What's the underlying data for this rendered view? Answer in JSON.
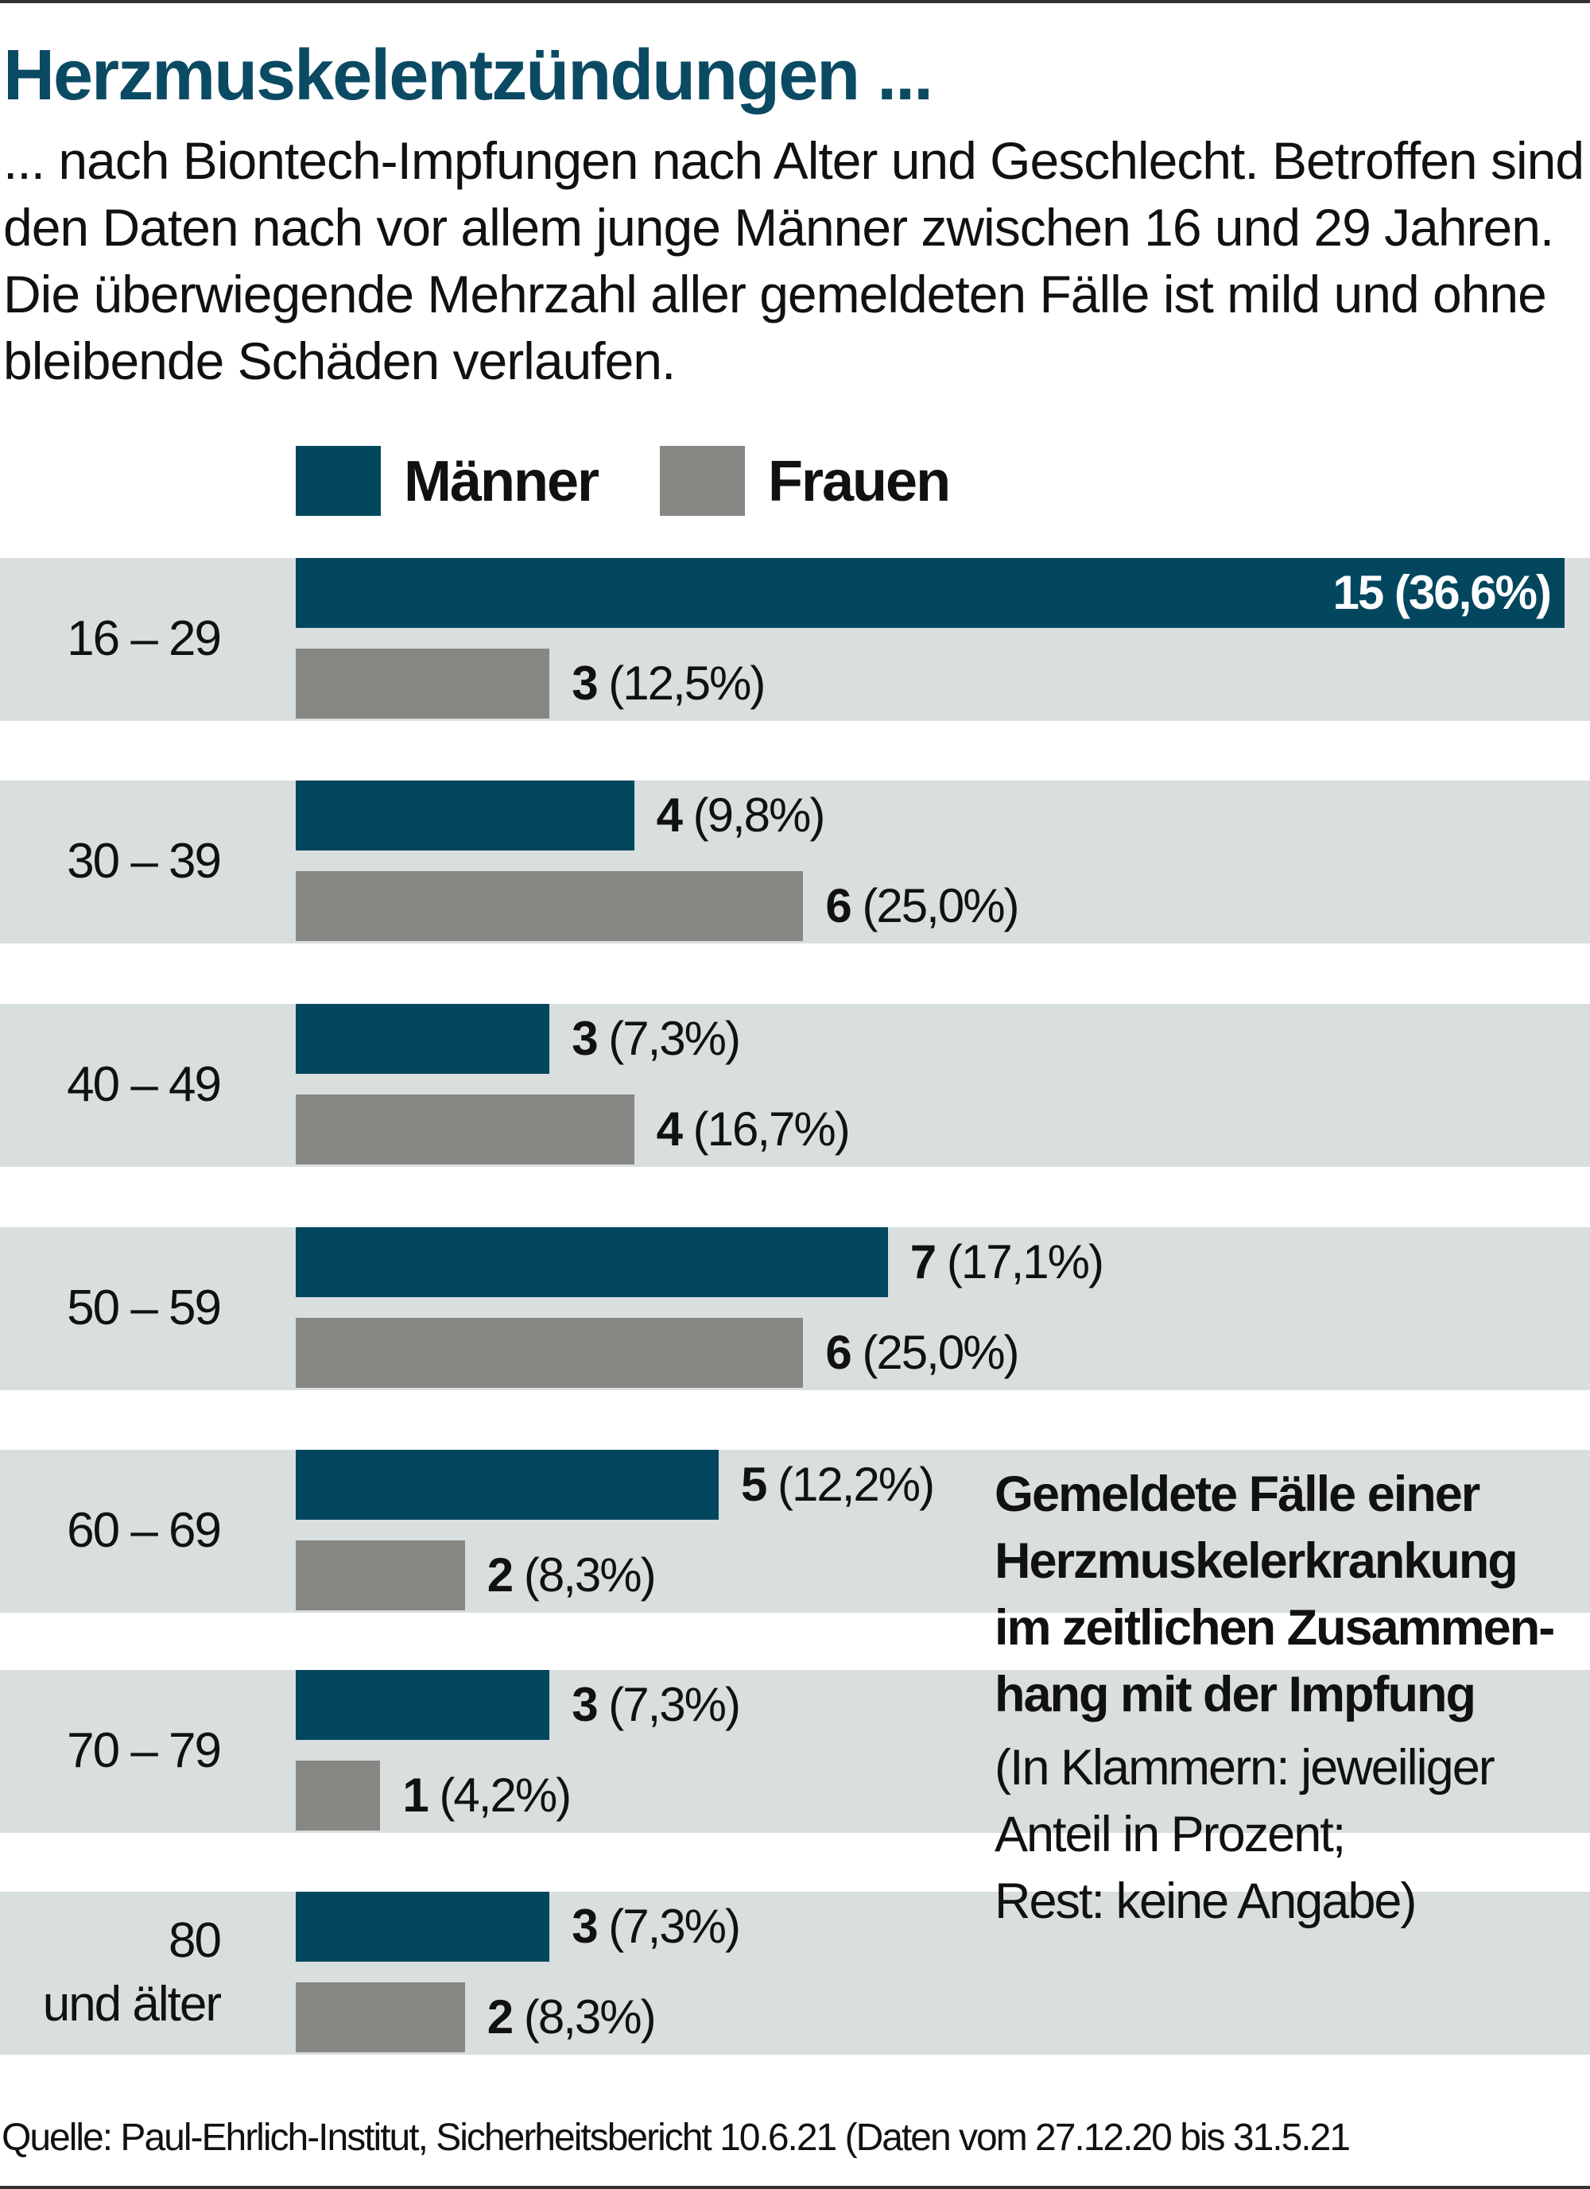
{
  "title": "Herzmuskelentzündungen ...",
  "subtitle": "... nach Biontech-Impfungen nach Alter und Geschlecht. Betroffen sind den Daten nach vor allem junge Männer zwischen 16 und 29 Jahren. Die überwiegende Mehrzahl aller gemeldeten Fälle ist mild und ohne bleibende Schäden verlaufen.",
  "colors": {
    "maenner": "#03475f",
    "frauen": "#878783",
    "band": "#d9dedf",
    "title": "#0b4a63"
  },
  "note": {
    "bold_lines": [
      "Gemeldete Fälle einer",
      "Herzmuskelerkrankung",
      "im zeitlichen Zusammen-",
      "hang mit der Impfung"
    ],
    "normal_lines": [
      "(In Klammern: jeweiliger",
      "Anteil in Prozent;",
      "Rest: keine Angabe)"
    ]
  },
  "source": "Quelle: Paul-Ehrlich-Institut, Sicherheitsbericht 10.6.21 (Daten vom 27.12.20 bis 31.5.21",
  "chart_data": {
    "type": "bar",
    "orientation": "horizontal",
    "title": "Herzmuskelentzündungen ...",
    "xlabel": "",
    "ylabel": "",
    "xlim": [
      0,
      15
    ],
    "grid": false,
    "legend": {
      "placement": "top",
      "entries": [
        "Männer",
        "Frauen"
      ]
    },
    "categories": [
      [
        "16 – 29"
      ],
      [
        "30 – 39"
      ],
      [
        "40 – 49"
      ],
      [
        "50 – 59"
      ],
      [
        "60 – 69"
      ],
      [
        "70 – 79"
      ],
      [
        "80",
        "und älter"
      ]
    ],
    "series": [
      {
        "name": "Männer",
        "values": [
          15,
          4,
          3,
          7,
          5,
          3,
          3
        ],
        "labels": [
          "(36,6%)",
          "(9,8%)",
          "(7,3%)",
          "(17,1%)",
          "(12,2%)",
          "(7,3%)",
          "(7,3%)"
        ]
      },
      {
        "name": "Frauen",
        "values": [
          3,
          6,
          4,
          6,
          2,
          1,
          2
        ],
        "labels": [
          "(12,5%)",
          "(25,0%)",
          "(16,7%)",
          "(25,0%)",
          "(8,3%)",
          "(4,2%)",
          "(8,3%)"
        ]
      }
    ]
  }
}
